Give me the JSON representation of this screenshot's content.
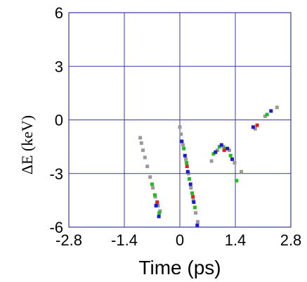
{
  "chart_data": {
    "type": "scatter",
    "xlabel": "Time (ps)",
    "ylabel": "ΔE (keV)",
    "xlim": [
      -2.8,
      2.8
    ],
    "ylim": [
      -6,
      6
    ],
    "xticks": [
      "-2.8",
      "-1.4",
      "0",
      "1.4",
      "2.8"
    ],
    "yticks": [
      "6",
      "3",
      "0",
      "-3",
      "-6"
    ],
    "grid": true,
    "grid_color": "#3a3aa0",
    "colors": {
      "gray": "#9a9a9a",
      "green": "#22bb22",
      "blue": "#1a1ad0",
      "red": "#dd2222"
    },
    "series": [
      {
        "color": "gray",
        "points": [
          [
            -1.0,
            -1.0
          ],
          [
            -0.97,
            -1.3
          ],
          [
            -0.93,
            -1.7
          ],
          [
            -0.88,
            -2.1
          ],
          [
            -0.82,
            -2.6
          ],
          [
            -0.75,
            -3.2
          ],
          [
            -0.68,
            -3.8
          ],
          [
            -0.62,
            -4.3
          ],
          [
            -0.55,
            -4.8
          ],
          [
            -0.5,
            -5.1
          ],
          [
            0.0,
            -0.4
          ],
          [
            0.03,
            -0.8
          ],
          [
            0.08,
            -1.4
          ],
          [
            0.15,
            -2.2
          ],
          [
            0.22,
            -3.0
          ],
          [
            0.28,
            -3.8
          ],
          [
            0.34,
            -4.5
          ],
          [
            0.4,
            -5.2
          ],
          [
            0.45,
            -5.7
          ],
          [
            0.8,
            -2.3
          ],
          [
            0.95,
            -1.7
          ],
          [
            1.1,
            -1.5
          ],
          [
            1.25,
            -1.7
          ],
          [
            1.38,
            -2.4
          ],
          [
            1.55,
            -2.9
          ],
          [
            1.9,
            -0.5
          ],
          [
            2.15,
            0.2
          ],
          [
            2.45,
            0.7
          ]
        ]
      },
      {
        "color": "green",
        "points": [
          [
            -0.7,
            -3.6
          ],
          [
            -0.63,
            -4.2
          ],
          [
            -0.58,
            -4.7
          ],
          [
            -0.52,
            -5.2
          ],
          [
            0.1,
            -1.6
          ],
          [
            0.17,
            -2.4
          ],
          [
            0.24,
            -3.3
          ],
          [
            0.31,
            -4.1
          ],
          [
            0.38,
            -4.9
          ],
          [
            0.85,
            -1.9
          ],
          [
            1.0,
            -1.5
          ],
          [
            1.15,
            -1.6
          ],
          [
            1.28,
            -2.0
          ],
          [
            1.43,
            -3.4
          ],
          [
            2.2,
            0.3
          ]
        ]
      },
      {
        "color": "blue",
        "points": [
          [
            -0.6,
            -4.8
          ],
          [
            -0.53,
            -5.4
          ],
          [
            0.05,
            -1.2
          ],
          [
            0.13,
            -2.0
          ],
          [
            0.2,
            -2.9
          ],
          [
            0.27,
            -3.6
          ],
          [
            0.35,
            -4.6
          ],
          [
            0.44,
            -5.9
          ],
          [
            0.9,
            -1.8
          ],
          [
            1.05,
            -1.4
          ],
          [
            1.2,
            -1.6
          ],
          [
            1.32,
            -2.2
          ],
          [
            1.85,
            -0.4
          ],
          [
            2.3,
            0.5
          ]
        ]
      },
      {
        "color": "red",
        "points": [
          [
            -0.57,
            -4.6
          ],
          [
            0.18,
            -2.6
          ],
          [
            0.33,
            -4.3
          ],
          [
            1.12,
            -1.7
          ],
          [
            1.95,
            -0.3
          ]
        ]
      }
    ]
  }
}
